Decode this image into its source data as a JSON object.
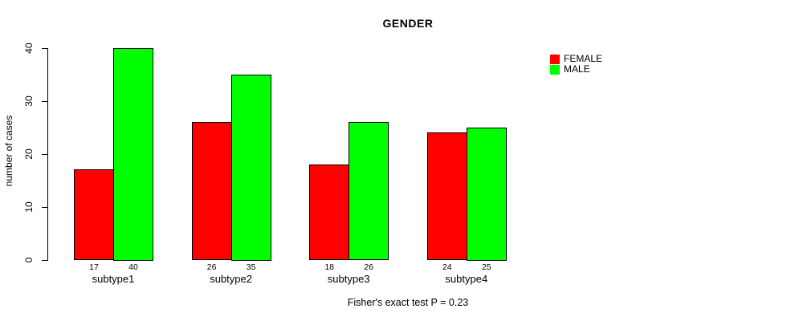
{
  "title": "GENDER",
  "caption": "Fisher's exact test P = 0.23",
  "chart_data": {
    "type": "bar",
    "title": "GENDER",
    "ylabel": "number of cases",
    "xlabel": "",
    "categories": [
      "subtype1",
      "subtype2",
      "subtype3",
      "subtype4"
    ],
    "series": [
      {
        "name": "FEMALE",
        "color": "#ff0000",
        "values": [
          17,
          26,
          18,
          24
        ]
      },
      {
        "name": "MALE",
        "color": "#00ff00",
        "values": [
          40,
          35,
          26,
          25
        ]
      }
    ],
    "bar_value_labels": [
      [
        "17",
        "26",
        "18",
        "24"
      ],
      [
        "40",
        "35",
        "26",
        "25"
      ]
    ],
    "yticks": [
      0,
      10,
      20,
      30,
      40
    ],
    "ylim": [
      0,
      40
    ],
    "grid": false,
    "legend_position": "top-right",
    "annotation": "Fisher's exact test P = 0.23",
    "bar_border_color": "#000000"
  }
}
